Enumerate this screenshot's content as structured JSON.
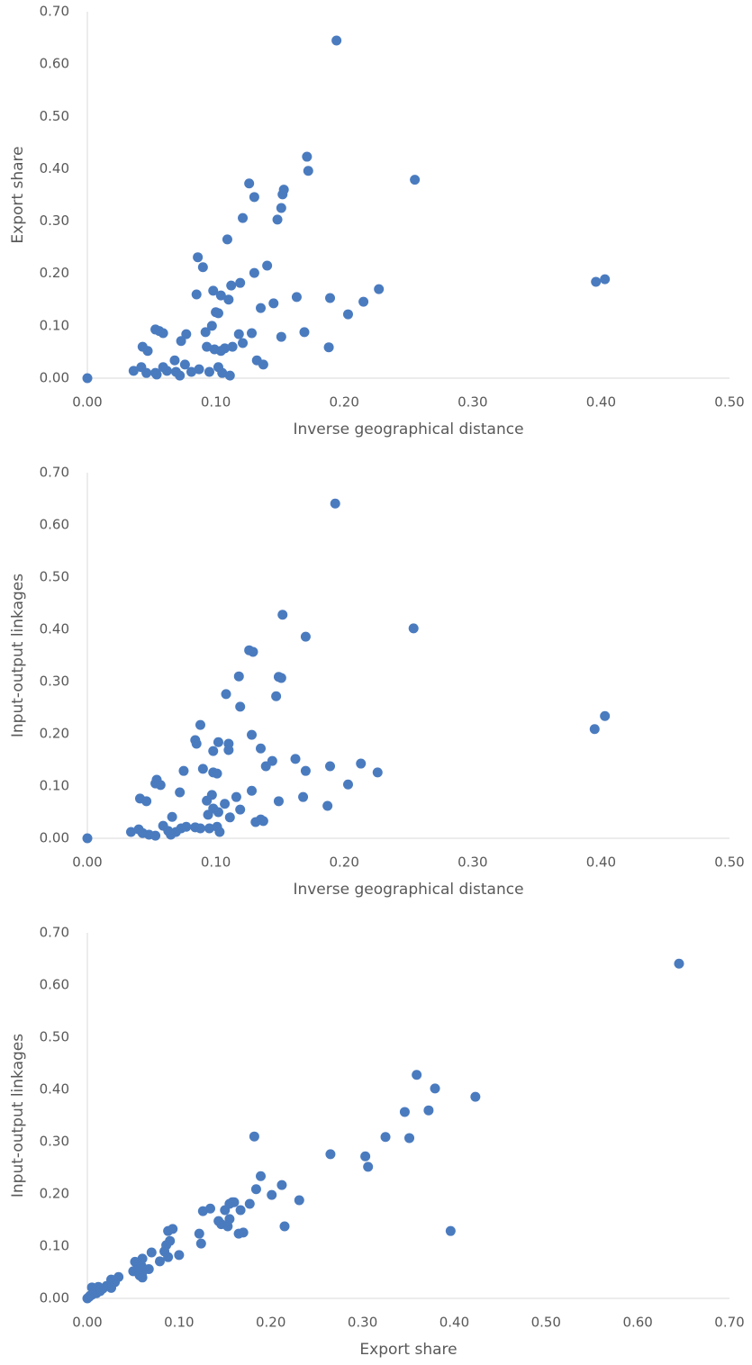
{
  "chart_data": [
    {
      "type": "scatter",
      "xlabel": "Inverse geographical distance",
      "ylabel": "Export share",
      "color": "#4a7bbf",
      "xlim": [
        0,
        0.5
      ],
      "ylim": [
        0,
        0.7
      ],
      "xticks": [
        {
          "value": 0,
          "label": "0.00"
        },
        {
          "value": 0.1,
          "label": "0.10"
        },
        {
          "value": 0.2,
          "label": "0.20"
        },
        {
          "value": 0.3,
          "label": "0.30"
        },
        {
          "value": 0.4,
          "label": "0.40"
        },
        {
          "value": 0.5,
          "label": "0.50"
        }
      ],
      "yticks": [
        {
          "value": 0,
          "label": "0.00"
        },
        {
          "value": 0.1,
          "label": "0.10"
        },
        {
          "value": 0.2,
          "label": "0.20"
        },
        {
          "value": 0.3,
          "label": "0.30"
        },
        {
          "value": 0.4,
          "label": "0.40"
        },
        {
          "value": 0.5,
          "label": "0.50"
        },
        {
          "value": 0.6,
          "label": "0.60"
        },
        {
          "value": 0.7,
          "label": "0.70"
        }
      ],
      "x": [
        0,
        0.194,
        0.171,
        0.172,
        0.255,
        0.126,
        0.153,
        0.152,
        0.13,
        0.151,
        0.121,
        0.148,
        0.109,
        0.086,
        0.09,
        0.14,
        0.13,
        0.119,
        0.112,
        0.403,
        0.396,
        0.098,
        0.085,
        0.104,
        0.163,
        0.189,
        0.11,
        0.227,
        0.215,
        0.145,
        0.135,
        0.1,
        0.102,
        0.203,
        0.097,
        0.092,
        0.128,
        0.118,
        0.169,
        0.053,
        0.056,
        0.059,
        0.077,
        0.151,
        0.073,
        0.121,
        0.093,
        0.113,
        0.107,
        0.099,
        0.104,
        0.188,
        0.043,
        0.047,
        0.132,
        0.137,
        0.068,
        0.076,
        0.059,
        0.042,
        0.102,
        0.036,
        0.046,
        0.053,
        0.069,
        0.081,
        0.087,
        0.095,
        0.105,
        0.062,
        0.072,
        0.111,
        0.054
      ],
      "values": [
        0,
        0.645,
        0.423,
        0.396,
        0.379,
        0.372,
        0.36,
        0.351,
        0.346,
        0.325,
        0.306,
        0.303,
        0.265,
        0.231,
        0.212,
        0.215,
        0.201,
        0.182,
        0.177,
        0.189,
        0.184,
        0.167,
        0.16,
        0.158,
        0.155,
        0.153,
        0.15,
        0.17,
        0.146,
        0.143,
        0.134,
        0.126,
        0.124,
        0.122,
        0.1,
        0.088,
        0.086,
        0.084,
        0.088,
        0.093,
        0.09,
        0.086,
        0.084,
        0.079,
        0.071,
        0.067,
        0.06,
        0.06,
        0.057,
        0.055,
        0.052,
        0.059,
        0.06,
        0.052,
        0.034,
        0.026,
        0.034,
        0.026,
        0.021,
        0.021,
        0.021,
        0.014,
        0.01,
        0.01,
        0.012,
        0.012,
        0.017,
        0.012,
        0.01,
        0.014,
        0.005,
        0.005,
        0.007
      ]
    },
    {
      "type": "scatter",
      "xlabel": "Inverse geographical distance",
      "ylabel": "Input-output linkages",
      "color": "#4a7bbf",
      "xlim": [
        0,
        0.5
      ],
      "ylim": [
        0,
        0.7
      ],
      "xticks": [
        {
          "value": 0,
          "label": "0.00"
        },
        {
          "value": 0.1,
          "label": "0.10"
        },
        {
          "value": 0.2,
          "label": "0.20"
        },
        {
          "value": 0.3,
          "label": "0.30"
        },
        {
          "value": 0.4,
          "label": "0.40"
        },
        {
          "value": 0.5,
          "label": "0.50"
        }
      ],
      "yticks": [
        {
          "value": 0,
          "label": "0.00"
        },
        {
          "value": 0.1,
          "label": "0.10"
        },
        {
          "value": 0.2,
          "label": "0.20"
        },
        {
          "value": 0.3,
          "label": "0.30"
        },
        {
          "value": 0.4,
          "label": "0.40"
        },
        {
          "value": 0.5,
          "label": "0.50"
        },
        {
          "value": 0.6,
          "label": "0.60"
        },
        {
          "value": 0.7,
          "label": "0.70"
        }
      ],
      "x": [
        0,
        0.193,
        0.152,
        0.17,
        0.254,
        0.126,
        0.129,
        0.149,
        0.151,
        0.118,
        0.108,
        0.147,
        0.119,
        0.088,
        0.128,
        0.403,
        0.395,
        0.084,
        0.085,
        0.102,
        0.11,
        0.11,
        0.098,
        0.135,
        0.162,
        0.144,
        0.139,
        0.189,
        0.213,
        0.17,
        0.226,
        0.075,
        0.098,
        0.101,
        0.09,
        0.054,
        0.053,
        0.057,
        0.203,
        0.116,
        0.128,
        0.072,
        0.041,
        0.046,
        0.093,
        0.168,
        0.149,
        0.097,
        0.107,
        0.098,
        0.119,
        0.187,
        0.102,
        0.094,
        0.111,
        0.066,
        0.135,
        0.131,
        0.137,
        0.059,
        0.073,
        0.077,
        0.084,
        0.088,
        0.095,
        0.101,
        0.04,
        0.034,
        0.043,
        0.048,
        0.053,
        0.063,
        0.069,
        0.103,
        0.065
      ],
      "values": [
        0,
        0.641,
        0.428,
        0.386,
        0.402,
        0.36,
        0.357,
        0.309,
        0.307,
        0.31,
        0.276,
        0.272,
        0.252,
        0.217,
        0.198,
        0.234,
        0.209,
        0.188,
        0.181,
        0.184,
        0.181,
        0.169,
        0.167,
        0.172,
        0.152,
        0.148,
        0.138,
        0.138,
        0.143,
        0.129,
        0.126,
        0.129,
        0.126,
        0.124,
        0.133,
        0.112,
        0.105,
        0.102,
        0.103,
        0.079,
        0.091,
        0.088,
        0.076,
        0.071,
        0.072,
        0.079,
        0.071,
        0.083,
        0.066,
        0.057,
        0.055,
        0.062,
        0.05,
        0.045,
        0.04,
        0.041,
        0.036,
        0.031,
        0.033,
        0.024,
        0.019,
        0.022,
        0.021,
        0.019,
        0.019,
        0.022,
        0.017,
        0.012,
        0.01,
        0.007,
        0.005,
        0.014,
        0.012,
        0.012,
        0.007
      ]
    },
    {
      "type": "scatter",
      "xlabel": "Export share",
      "ylabel": "Input-output linkages",
      "color": "#4a7bbf",
      "xlim": [
        0,
        0.7
      ],
      "ylim": [
        0,
        0.7
      ],
      "xticks": [
        {
          "value": 0,
          "label": "0.00"
        },
        {
          "value": 0.1,
          "label": "0.10"
        },
        {
          "value": 0.2,
          "label": "0.20"
        },
        {
          "value": 0.3,
          "label": "0.30"
        },
        {
          "value": 0.4,
          "label": "0.40"
        },
        {
          "value": 0.5,
          "label": "0.50"
        },
        {
          "value": 0.6,
          "label": "0.60"
        },
        {
          "value": 0.7,
          "label": "0.70"
        }
      ],
      "yticks": [
        {
          "value": 0,
          "label": "0.00"
        },
        {
          "value": 0.1,
          "label": "0.10"
        },
        {
          "value": 0.2,
          "label": "0.20"
        },
        {
          "value": 0.3,
          "label": "0.30"
        },
        {
          "value": 0.4,
          "label": "0.40"
        },
        {
          "value": 0.5,
          "label": "0.50"
        },
        {
          "value": 0.6,
          "label": "0.60"
        },
        {
          "value": 0.7,
          "label": "0.70"
        }
      ],
      "x": [
        0.645,
        0.359,
        0.379,
        0.423,
        0.372,
        0.346,
        0.325,
        0.351,
        0.182,
        0.265,
        0.303,
        0.306,
        0.189,
        0.231,
        0.184,
        0.212,
        0.201,
        0.177,
        0.158,
        0.155,
        0.167,
        0.126,
        0.134,
        0.15,
        0.16,
        0.143,
        0.146,
        0.153,
        0.155,
        0.215,
        0.17,
        0.165,
        0.396,
        0.124,
        0.122,
        0.088,
        0.093,
        0.09,
        0.086,
        0.084,
        0.1,
        0.088,
        0.079,
        0.07,
        0.06,
        0.052,
        0.067,
        0.06,
        0.057,
        0.05,
        0.059,
        0.055,
        0.034,
        0.026,
        0.03,
        0.021,
        0.026,
        0.017,
        0.012,
        0.01,
        0.014,
        0.005,
        0.007,
        0.01,
        0.005,
        0.003,
        0,
        0.002,
        0.06
      ],
      "values": [
        0.641,
        0.428,
        0.402,
        0.386,
        0.36,
        0.357,
        0.309,
        0.307,
        0.31,
        0.276,
        0.272,
        0.252,
        0.234,
        0.188,
        0.209,
        0.217,
        0.198,
        0.181,
        0.184,
        0.181,
        0.169,
        0.167,
        0.172,
        0.169,
        0.184,
        0.148,
        0.142,
        0.138,
        0.152,
        0.138,
        0.126,
        0.124,
        0.129,
        0.105,
        0.124,
        0.129,
        0.133,
        0.11,
        0.102,
        0.09,
        0.083,
        0.079,
        0.071,
        0.088,
        0.076,
        0.07,
        0.056,
        0.05,
        0.044,
        0.052,
        0.062,
        0.055,
        0.041,
        0.036,
        0.031,
        0.024,
        0.02,
        0.019,
        0.022,
        0.017,
        0.014,
        0.021,
        0.012,
        0.01,
        0.007,
        0.005,
        0,
        0.003,
        0.04
      ]
    }
  ]
}
